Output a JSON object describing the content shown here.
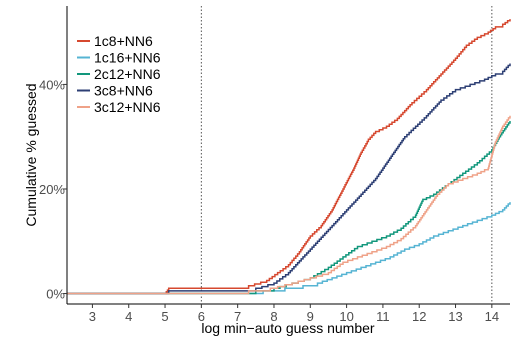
{
  "chart_data": {
    "type": "line",
    "xlabel": "log min−auto guess number",
    "ylabel": "Cumulative % guessed",
    "xlim": [
      2.3,
      14.5
    ],
    "ylim": [
      -2,
      55
    ],
    "x_ticks": [
      3,
      4,
      5,
      6,
      7,
      8,
      9,
      10,
      11,
      12,
      13,
      14
    ],
    "x_tick_labels": [
      "3",
      "4",
      "5",
      "6",
      "7",
      "8",
      "9",
      "10",
      "11",
      "12",
      "13",
      "14"
    ],
    "y_ticks": [
      0,
      20,
      40
    ],
    "y_tick_labels": [
      "0%",
      "20%",
      "40%"
    ],
    "reference_lines_x": [
      6,
      14
    ],
    "grid": false,
    "legend_position": "top-left",
    "series": [
      {
        "name": "1c8+NN6",
        "color": "#d6482f",
        "points": [
          [
            2.3,
            0
          ],
          [
            5.0,
            0
          ],
          [
            5.1,
            1
          ],
          [
            6.6,
            1
          ],
          [
            7.3,
            1.5
          ],
          [
            7.8,
            2.5
          ],
          [
            8.1,
            4
          ],
          [
            8.4,
            5.5
          ],
          [
            8.7,
            8
          ],
          [
            9.0,
            11
          ],
          [
            9.3,
            13
          ],
          [
            9.6,
            16
          ],
          [
            9.9,
            20
          ],
          [
            10.2,
            24
          ],
          [
            10.4,
            27
          ],
          [
            10.6,
            29.5
          ],
          [
            10.8,
            31
          ],
          [
            11.1,
            32
          ],
          [
            11.4,
            33.5
          ],
          [
            11.8,
            36.5
          ],
          [
            12.2,
            39
          ],
          [
            12.6,
            42
          ],
          [
            13.0,
            45
          ],
          [
            13.3,
            47.5
          ],
          [
            13.6,
            49
          ],
          [
            13.9,
            50
          ],
          [
            14.1,
            51
          ],
          [
            14.3,
            51.5
          ],
          [
            14.5,
            52.5
          ]
        ]
      },
      {
        "name": "1c16+NN6",
        "color": "#56b4d3",
        "points": [
          [
            2.3,
            0
          ],
          [
            7.0,
            0
          ],
          [
            7.7,
            0.5
          ],
          [
            8.3,
            1
          ],
          [
            8.8,
            1.5
          ],
          [
            9.2,
            2
          ],
          [
            9.6,
            3
          ],
          [
            10.0,
            4
          ],
          [
            10.4,
            5
          ],
          [
            10.8,
            6
          ],
          [
            11.2,
            7
          ],
          [
            11.6,
            8.5
          ],
          [
            12.0,
            9.5
          ],
          [
            12.4,
            11
          ],
          [
            12.8,
            12
          ],
          [
            13.2,
            13
          ],
          [
            13.6,
            14
          ],
          [
            14.0,
            15
          ],
          [
            14.3,
            16
          ],
          [
            14.5,
            17.5
          ]
        ]
      },
      {
        "name": "2c12+NN6",
        "color": "#12977c",
        "points": [
          [
            2.3,
            0
          ],
          [
            6.8,
            0
          ],
          [
            7.5,
            0.5
          ],
          [
            8.0,
            1
          ],
          [
            8.5,
            2
          ],
          [
            9.0,
            3
          ],
          [
            9.5,
            5
          ],
          [
            9.9,
            7
          ],
          [
            10.3,
            9
          ],
          [
            10.7,
            10
          ],
          [
            11.1,
            11
          ],
          [
            11.5,
            12.5
          ],
          [
            11.9,
            15
          ],
          [
            12.1,
            18
          ],
          [
            12.4,
            19
          ],
          [
            12.8,
            21
          ],
          [
            13.2,
            23
          ],
          [
            13.6,
            25
          ],
          [
            14.0,
            27.5
          ],
          [
            14.2,
            30
          ],
          [
            14.5,
            33
          ]
        ]
      },
      {
        "name": "3c8+NN6",
        "color": "#2d3f74",
        "points": [
          [
            2.3,
            0
          ],
          [
            5.0,
            0
          ],
          [
            5.1,
            0.5
          ],
          [
            7.0,
            0.5
          ],
          [
            7.5,
            1
          ],
          [
            8.0,
            2
          ],
          [
            8.4,
            4
          ],
          [
            8.8,
            7
          ],
          [
            9.2,
            10
          ],
          [
            9.6,
            13
          ],
          [
            10.0,
            16
          ],
          [
            10.4,
            19
          ],
          [
            10.8,
            22
          ],
          [
            11.0,
            24
          ],
          [
            11.3,
            27
          ],
          [
            11.6,
            30
          ],
          [
            11.9,
            32
          ],
          [
            12.2,
            34
          ],
          [
            12.6,
            37
          ],
          [
            13.0,
            39
          ],
          [
            13.4,
            40
          ],
          [
            13.8,
            41
          ],
          [
            14.1,
            42
          ],
          [
            14.3,
            42.5
          ],
          [
            14.5,
            44
          ]
        ]
      },
      {
        "name": "3c12+NN6",
        "color": "#efa288",
        "points": [
          [
            2.3,
            0
          ],
          [
            6.6,
            0
          ],
          [
            7.3,
            0.5
          ],
          [
            7.9,
            1
          ],
          [
            8.5,
            2
          ],
          [
            9.0,
            3
          ],
          [
            9.5,
            4
          ],
          [
            9.9,
            6
          ],
          [
            10.3,
            7
          ],
          [
            10.7,
            8
          ],
          [
            11.1,
            9
          ],
          [
            11.5,
            10.5
          ],
          [
            11.9,
            13
          ],
          [
            12.2,
            16
          ],
          [
            12.5,
            19
          ],
          [
            12.8,
            21
          ],
          [
            13.2,
            22
          ],
          [
            13.6,
            23
          ],
          [
            13.9,
            24
          ],
          [
            14.1,
            29
          ],
          [
            14.3,
            32
          ],
          [
            14.5,
            34
          ]
        ]
      }
    ]
  }
}
